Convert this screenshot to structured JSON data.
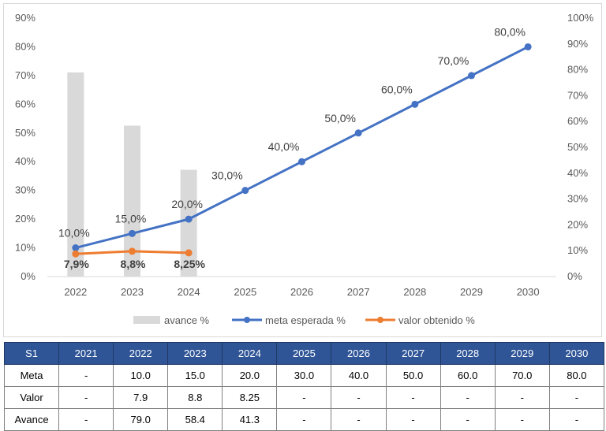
{
  "chart_data": {
    "type": "bar+line",
    "categories": [
      "2022",
      "2023",
      "2024",
      "2025",
      "2026",
      "2027",
      "2028",
      "2029",
      "2030"
    ],
    "y_left": {
      "ticks": [
        "0%",
        "10%",
        "20%",
        "30%",
        "40%",
        "50%",
        "60%",
        "70%",
        "80%",
        "90%"
      ],
      "ylim": [
        0,
        90
      ]
    },
    "y_right": {
      "ticks": [
        "0%",
        "10%",
        "20%",
        "30%",
        "40%",
        "50%",
        "60%",
        "70%",
        "80%",
        "90%",
        "100%"
      ],
      "ylim": [
        0,
        100
      ]
    },
    "series": [
      {
        "name": "avance %",
        "type": "bar",
        "axis": "right",
        "color": "#d9d9d9",
        "values": [
          79.0,
          58.4,
          41.3,
          null,
          null,
          null,
          null,
          null,
          null
        ]
      },
      {
        "name": "meta esperada %",
        "type": "line",
        "axis": "left",
        "color": "#4472c4",
        "values": [
          10,
          15,
          20,
          30,
          40,
          50,
          60,
          70,
          80
        ],
        "labels": [
          "10,0%",
          "15,0%",
          "20,0%",
          "30,0%",
          "40,0%",
          "50,0%",
          "60,0%",
          "70,0%",
          "80,0%"
        ]
      },
      {
        "name": "valor obtenido %",
        "type": "line",
        "axis": "left",
        "color": "#ed7d31",
        "values": [
          7.9,
          8.8,
          8.25,
          null,
          null,
          null,
          null,
          null,
          null
        ],
        "labels": [
          "7,9%",
          "8,8%",
          "8,25%"
        ]
      }
    ],
    "legend_position": "bottom",
    "grid": false
  },
  "table": {
    "headers": [
      "S1",
      "2021",
      "2022",
      "2023",
      "2024",
      "2025",
      "2026",
      "2027",
      "2028",
      "2029",
      "2030"
    ],
    "rows": [
      [
        "Meta",
        "-",
        "10.0",
        "15.0",
        "20.0",
        "30.0",
        "40.0",
        "50.0",
        "60.0",
        "70.0",
        "80.0"
      ],
      [
        "Valor",
        "-",
        "7.9",
        "8.8",
        "8.25",
        "-",
        "-",
        "-",
        "-",
        "-",
        "-"
      ],
      [
        "Avance",
        "-",
        "79.0",
        "58.4",
        "41.3",
        "-",
        "-",
        "-",
        "-",
        "-",
        "-"
      ]
    ]
  }
}
